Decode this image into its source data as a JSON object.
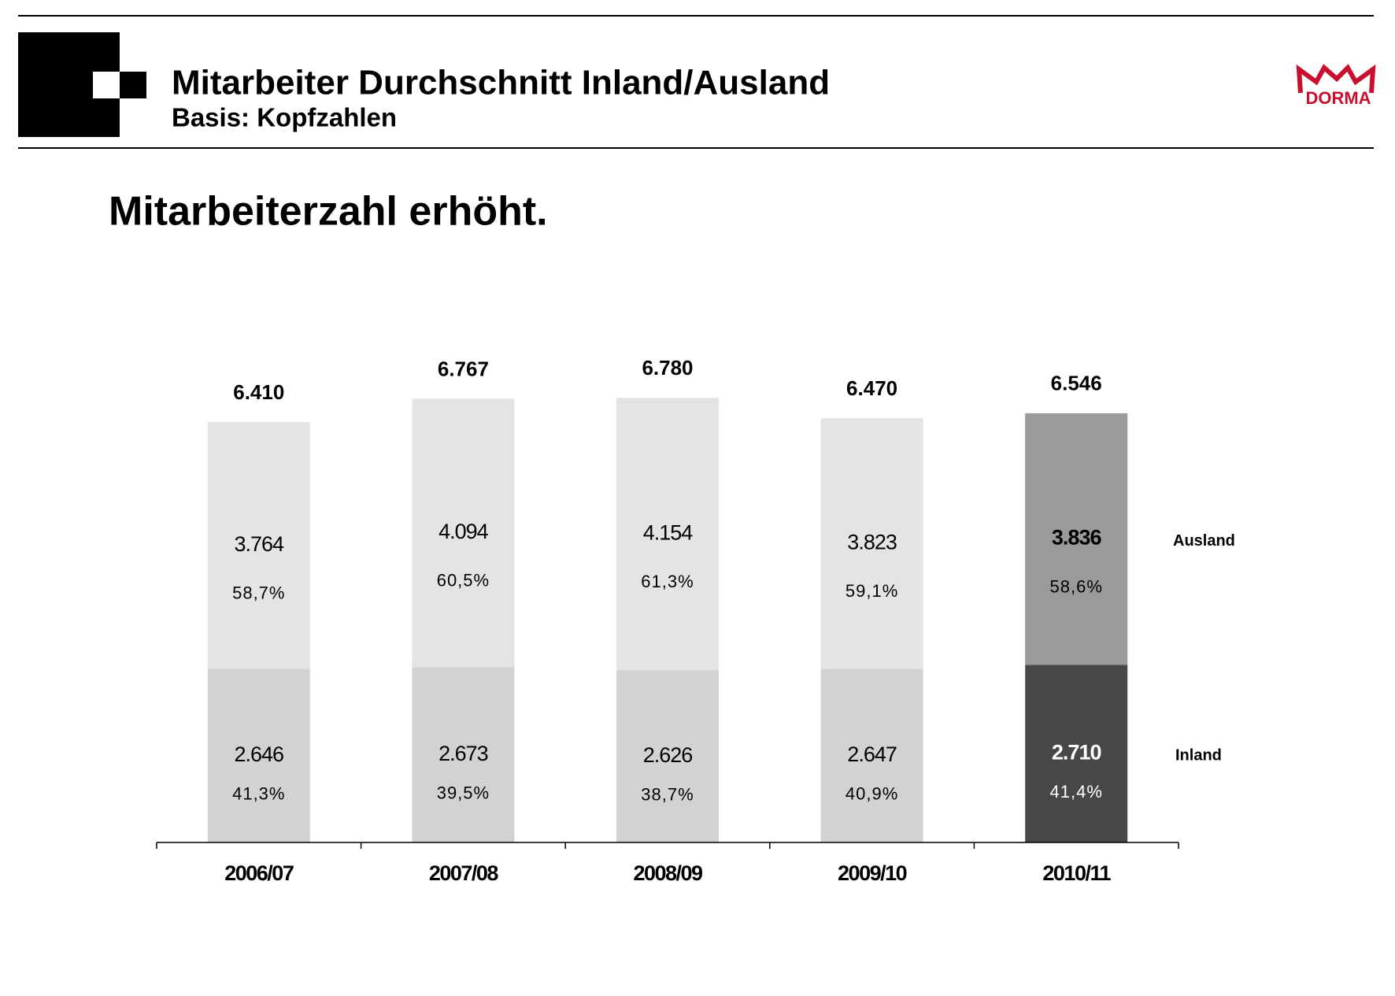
{
  "header": {
    "title": "Mitarbeiter Durchschnitt Inland/Ausland",
    "subtitle": "Basis: Kopfzahlen",
    "logo": "DORMA",
    "headline": "Mitarbeiterzahl erhöht."
  },
  "chart_data": {
    "type": "stacked_bar",
    "categories": [
      "2006/07",
      "2007/08",
      "2008/09",
      "2009/10",
      "2010/11"
    ],
    "series": [
      {
        "name": "Inland",
        "values": [
          2646,
          2673,
          2626,
          2647,
          2710
        ],
        "value_labels": [
          "2.646",
          "2.673",
          "2.626",
          "2.647",
          "2.710"
        ],
        "percent_labels": [
          "41,3%",
          "39,5%",
          "38,7%",
          "40,9%",
          "41,4%"
        ],
        "colors": [
          "#d2d2d4",
          "#d2d2d4",
          "#d2d2d4",
          "#d2d2d4",
          "#474747"
        ]
      },
      {
        "name": "Ausland",
        "values": [
          3764,
          4094,
          4154,
          3823,
          3836
        ],
        "value_labels": [
          "3.764",
          "4.094",
          "4.154",
          "3.823",
          "3.836"
        ],
        "percent_labels": [
          "58,7%",
          "60,5%",
          "61,3%",
          "59,1%",
          "58,6%"
        ],
        "colors": [
          "#e4e4e4",
          "#e4e4e4",
          "#e4e4e4",
          "#e4e4e4",
          "#9a9a9a"
        ]
      }
    ],
    "totals": [
      {
        "value": 6410,
        "label": "6.410"
      },
      {
        "value": 6767,
        "label": "6.767"
      },
      {
        "value": 6780,
        "label": "6.780"
      },
      {
        "value": 6470,
        "label": "6.470"
      },
      {
        "value": 6546,
        "label": "6.546"
      }
    ],
    "ylim": [
      0,
      7000
    ]
  }
}
